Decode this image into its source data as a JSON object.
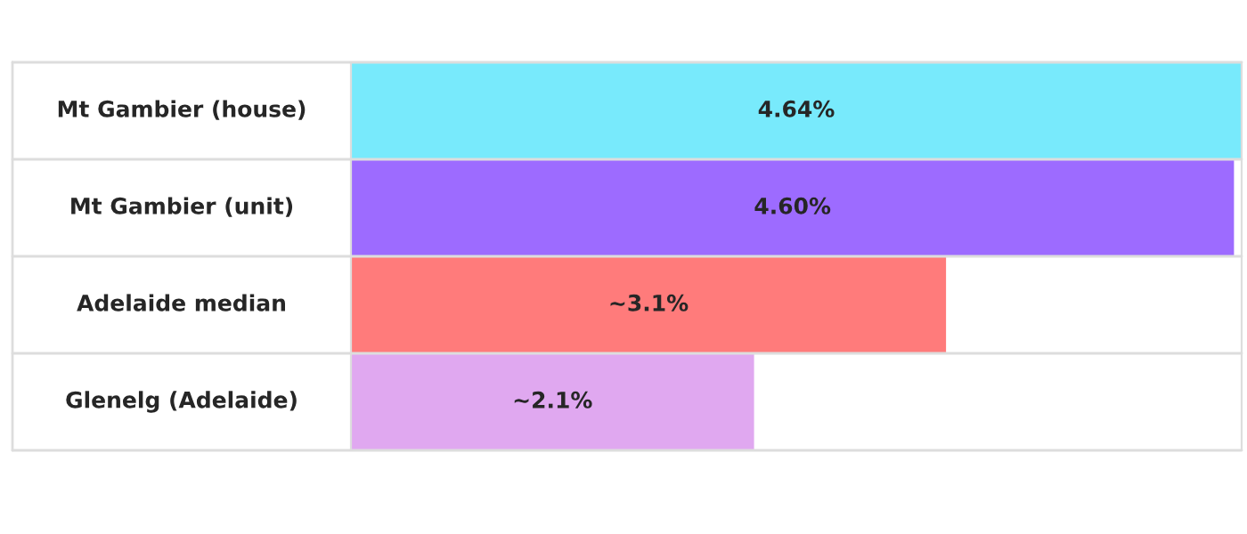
{
  "chart_data": {
    "type": "bar",
    "orientation": "horizontal",
    "categories": [
      "Mt Gambier (house)",
      "Mt Gambier (unit)",
      "Adelaide median",
      "Glenelg (Adelaide)"
    ],
    "values": [
      4.64,
      4.6,
      3.1,
      2.1
    ],
    "value_labels": [
      "4.64%",
      "4.60%",
      "~3.1%",
      "~2.1%"
    ],
    "colors": [
      "#78eafc",
      "#9d6bff",
      "#ff7b7b",
      "#e0a8f0"
    ],
    "data_labels": false
  }
}
